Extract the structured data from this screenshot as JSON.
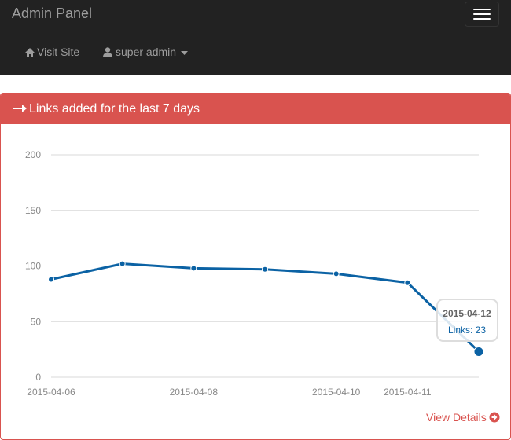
{
  "navbar": {
    "brand": "Admin Panel",
    "links": [
      "Visit Site",
      "super admin"
    ]
  },
  "panel": {
    "title": "Links added for the last 7 days",
    "link": "View Details"
  },
  "chart_data": {
    "type": "line",
    "x": [
      "2015-04-06",
      "2015-04-07",
      "2015-04-08",
      "2015-04-09",
      "2015-04-10",
      "2015-04-11",
      "2015-04-12"
    ],
    "xticks": [
      "2015-04-06",
      "2015-04-08",
      "2015-04-10",
      "2015-04-11"
    ],
    "series": [
      {
        "name": "Links",
        "color": "#0b62a4",
        "values": [
          88,
          102,
          98,
          97,
          93,
          85,
          23
        ]
      }
    ],
    "ylim": [
      0,
      200
    ],
    "yticks": [
      0,
      50,
      100,
      150,
      200
    ],
    "grid": true,
    "tooltip": {
      "title": "2015-04-12",
      "text": "Links: 23"
    }
  }
}
